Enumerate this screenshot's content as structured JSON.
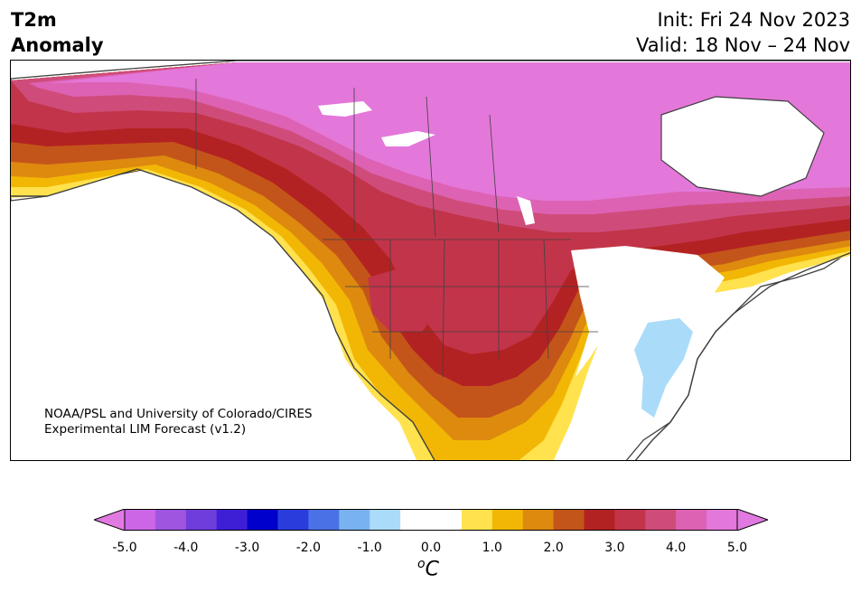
{
  "header": {
    "title_line1": "T2m",
    "title_line2": "Anomaly",
    "init": "Init: Fri 24 Nov 2023",
    "valid": "Valid: 18 Nov – 24 Nov"
  },
  "credit": {
    "line1": "NOAA/PSL and University of Colorado/CIRES",
    "line2": "Experimental LIM Forecast (v1.2)"
  },
  "colorbar": {
    "ticks": [
      "-5.0",
      "-4.0",
      "-3.0",
      "-2.0",
      "-1.0",
      "0.0",
      "1.0",
      "2.0",
      "3.0",
      "4.0",
      "5.0"
    ],
    "unit_base": "o",
    "unit_main": "C",
    "under_color": "#e07ae0",
    "over_color": "#e07ae0",
    "colors": [
      "#cc66e6",
      "#9f55e0",
      "#6f3ddb",
      "#3f1fd6",
      "#0000cc",
      "#2a3ddc",
      "#4a72e6",
      "#78b2f0",
      "#aadcfa",
      "#ffffff",
      "#ffffff",
      "#ffe24d",
      "#f2b705",
      "#dd8a0f",
      "#c4551a",
      "#b32222",
      "#c2344a",
      "#cf4c7a",
      "#dd62b3",
      "#e477da"
    ]
  },
  "map": {
    "projection": "Lambert conformal (North America)",
    "anomaly_levels": [
      {
        "name": "above +5",
        "color": "#e477da"
      },
      {
        "name": "+4.5",
        "color": "#dd62b3"
      },
      {
        "name": "+4.0",
        "color": "#cf4c7a"
      },
      {
        "name": "+3.5",
        "color": "#c2344a"
      },
      {
        "name": "+3.0",
        "color": "#b32222"
      },
      {
        "name": "+2.5",
        "color": "#c4551a"
      },
      {
        "name": "+2.0",
        "color": "#dd8a0f"
      },
      {
        "name": "+1.5",
        "color": "#f2b705"
      },
      {
        "name": "+1.0",
        "color": "#ffe24d"
      },
      {
        "name": "-1.0",
        "color": "#aadcfa"
      }
    ]
  }
}
